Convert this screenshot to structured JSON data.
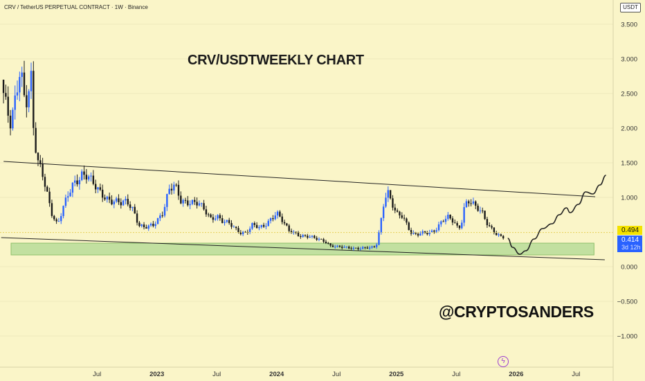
{
  "header": {
    "symbol_line": "CRV / TetherUS PERPETUAL CONTRACT · 1W · Binance",
    "currency": "USDT"
  },
  "chart_data": {
    "type": "candlestick",
    "title": "CRV/USDTWEEKLY CHART",
    "watermark": "@CRYPTOSANDERS",
    "ylim": [
      -1.45,
      3.85
    ],
    "y_ticks": [
      "3.500",
      "3.000",
      "2.500",
      "2.000",
      "1.500",
      "1.000",
      "0.000",
      "−0.500",
      "−1.000"
    ],
    "y_tick_values": [
      3.5,
      3.0,
      2.5,
      2.0,
      1.5,
      1.0,
      0.0,
      -0.5,
      -1.0
    ],
    "x_ticks": [
      "Jul",
      "2023",
      "Jul",
      "2024",
      "Jul",
      "2025",
      "Jul",
      "2026",
      "Jul"
    ],
    "x_tick_values": [
      2022.5,
      2023.0,
      2023.5,
      2024.0,
      2024.5,
      2025.0,
      2025.5,
      2026.0,
      2026.5
    ],
    "x_range": [
      2021.69,
      2026.81
    ],
    "current_price": "0.494",
    "last_price": "0.414",
    "countdown": "3d 12h",
    "candle_anchors": [
      [
        2021.7,
        2.7
      ],
      [
        2021.75,
        2.2
      ],
      [
        2021.78,
        2.0
      ],
      [
        2021.82,
        2.4
      ],
      [
        2021.86,
        2.95
      ],
      [
        2021.9,
        2.4
      ],
      [
        2021.95,
        2.7
      ],
      [
        2021.97,
        1.95
      ],
      [
        2022.0,
        1.5
      ],
      [
        2022.05,
        1.3
      ],
      [
        2022.08,
        1.1
      ],
      [
        2022.12,
        0.8
      ],
      [
        2022.17,
        0.6
      ],
      [
        2022.22,
        0.85
      ],
      [
        2022.3,
        1.2
      ],
      [
        2022.37,
        1.35
      ],
      [
        2022.42,
        1.3
      ],
      [
        2022.48,
        1.15
      ],
      [
        2022.55,
        1.05
      ],
      [
        2022.62,
        0.95
      ],
      [
        2022.7,
        0.9
      ],
      [
        2022.75,
        0.95
      ],
      [
        2022.8,
        0.85
      ],
      [
        2022.85,
        0.6
      ],
      [
        2022.9,
        0.55
      ],
      [
        2022.97,
        0.6
      ],
      [
        2023.05,
        0.8
      ],
      [
        2023.1,
        1.1
      ],
      [
        2023.15,
        1.15
      ],
      [
        2023.2,
        0.95
      ],
      [
        2023.28,
        0.95
      ],
      [
        2023.35,
        0.9
      ],
      [
        2023.4,
        0.8
      ],
      [
        2023.45,
        0.7
      ],
      [
        2023.5,
        0.75
      ],
      [
        2023.55,
        0.65
      ],
      [
        2023.6,
        0.62
      ],
      [
        2023.65,
        0.55
      ],
      [
        2023.7,
        0.5
      ],
      [
        2023.75,
        0.5
      ],
      [
        2023.8,
        0.6
      ],
      [
        2023.85,
        0.55
      ],
      [
        2023.9,
        0.6
      ],
      [
        2023.95,
        0.7
      ],
      [
        2024.0,
        0.78
      ],
      [
        2024.02,
        0.72
      ],
      [
        2024.06,
        0.62
      ],
      [
        2024.1,
        0.52
      ],
      [
        2024.15,
        0.5
      ],
      [
        2024.2,
        0.45
      ],
      [
        2024.28,
        0.42
      ],
      [
        2024.35,
        0.4
      ],
      [
        2024.4,
        0.38
      ],
      [
        2024.45,
        0.3
      ],
      [
        2024.5,
        0.28
      ],
      [
        2024.6,
        0.28
      ],
      [
        2024.7,
        0.26
      ],
      [
        2024.78,
        0.27
      ],
      [
        2024.83,
        0.3
      ],
      [
        2024.86,
        0.55
      ],
      [
        2024.9,
        1.0
      ],
      [
        2024.93,
        1.05
      ],
      [
        2024.96,
        0.9
      ],
      [
        2025.0,
        0.75
      ],
      [
        2025.05,
        0.75
      ],
      [
        2025.08,
        0.65
      ],
      [
        2025.12,
        0.5
      ],
      [
        2025.17,
        0.45
      ],
      [
        2025.22,
        0.48
      ],
      [
        2025.28,
        0.5
      ],
      [
        2025.33,
        0.55
      ],
      [
        2025.38,
        0.65
      ],
      [
        2025.43,
        0.7
      ],
      [
        2025.48,
        0.65
      ],
      [
        2025.52,
        0.55
      ],
      [
        2025.55,
        0.7
      ],
      [
        2025.57,
        0.9
      ],
      [
        2025.6,
        0.95
      ],
      [
        2025.66,
        0.85
      ],
      [
        2025.72,
        0.78
      ],
      [
        2025.77,
        0.6
      ],
      [
        2025.8,
        0.55
      ],
      [
        2025.84,
        0.45
      ],
      [
        2025.88,
        0.42
      ],
      [
        2025.91,
        0.41
      ]
    ],
    "resistance_line": [
      [
        2021.72,
        1.52
      ],
      [
        2026.66,
        1.01
      ]
    ],
    "support_line": [
      [
        2021.7,
        0.42
      ],
      [
        2026.74,
        0.1
      ]
    ],
    "support_zone": {
      "x": [
        2021.69,
        2026.65
      ],
      "y": [
        0.17,
        0.34
      ]
    },
    "projection_path": [
      [
        2025.93,
        0.41
      ],
      [
        2025.97,
        0.28
      ],
      [
        2026.03,
        0.18
      ],
      [
        2026.08,
        0.23
      ],
      [
        2026.15,
        0.4
      ],
      [
        2026.22,
        0.55
      ],
      [
        2026.3,
        0.62
      ],
      [
        2026.36,
        0.75
      ],
      [
        2026.42,
        0.85
      ],
      [
        2026.45,
        0.78
      ],
      [
        2026.52,
        0.9
      ],
      [
        2026.58,
        1.08
      ],
      [
        2026.64,
        1.05
      ],
      [
        2026.7,
        1.18
      ],
      [
        2026.75,
        1.32
      ]
    ],
    "colors": {
      "up": "#2962ff",
      "down": "#1a1a1a",
      "zone": "#c2e0a0",
      "line": "#222222"
    }
  }
}
